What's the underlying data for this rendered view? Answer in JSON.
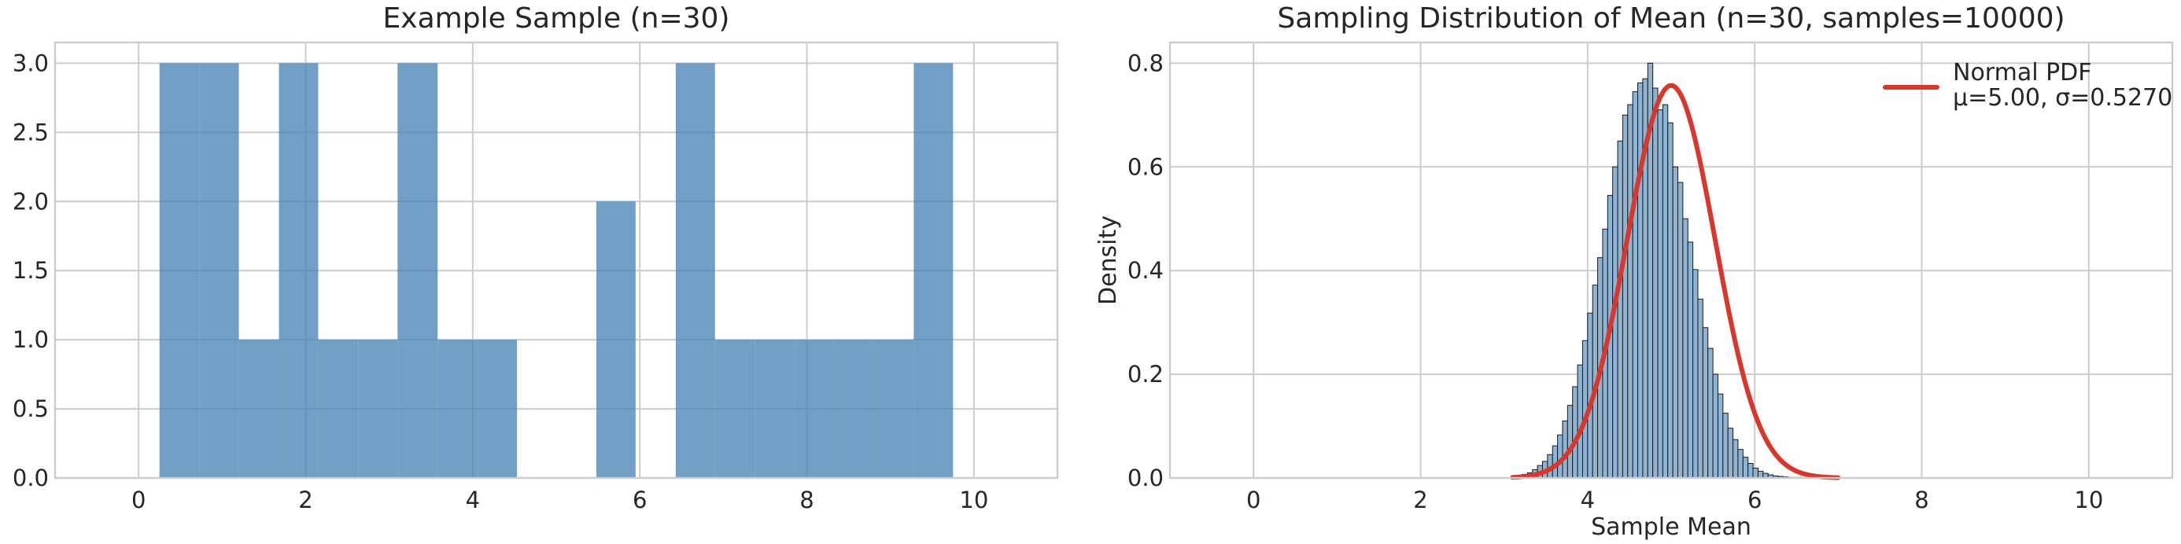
{
  "chart_data": [
    {
      "type": "bar",
      "title": "Example Sample (n=30)",
      "xlabel": "",
      "ylabel": "",
      "xlim": [
        -1,
        11
      ],
      "ylim": [
        0,
        3.15
      ],
      "xticks": [
        0,
        2,
        4,
        6,
        8,
        10
      ],
      "yticks": [
        0.0,
        0.5,
        1.0,
        1.5,
        2.0,
        2.5,
        3.0
      ],
      "xtick_labels": [
        "0",
        "2",
        "4",
        "6",
        "8",
        "10"
      ],
      "ytick_labels": [
        "0.0",
        "0.5",
        "1.0",
        "1.5",
        "2.0",
        "2.5",
        "3.0"
      ],
      "grid": true,
      "bar_color": "#4682b4",
      "bins": [
        {
          "x0": 0.25,
          "x1": 0.73,
          "count": 3
        },
        {
          "x0": 0.73,
          "x1": 1.2,
          "count": 3
        },
        {
          "x0": 1.2,
          "x1": 1.68,
          "count": 1
        },
        {
          "x0": 1.68,
          "x1": 2.15,
          "count": 3
        },
        {
          "x0": 2.15,
          "x1": 2.63,
          "count": 1
        },
        {
          "x0": 2.63,
          "x1": 3.1,
          "count": 1
        },
        {
          "x0": 3.1,
          "x1": 3.58,
          "count": 3
        },
        {
          "x0": 3.58,
          "x1": 4.05,
          "count": 1
        },
        {
          "x0": 4.05,
          "x1": 4.53,
          "count": 1
        },
        {
          "x0": 4.53,
          "x1": 5.0,
          "count": 0
        },
        {
          "x0": 5.0,
          "x1": 5.48,
          "count": 0
        },
        {
          "x0": 5.48,
          "x1": 5.95,
          "count": 2
        },
        {
          "x0": 5.95,
          "x1": 6.43,
          "count": 0
        },
        {
          "x0": 6.43,
          "x1": 6.9,
          "count": 3
        },
        {
          "x0": 6.9,
          "x1": 7.38,
          "count": 1
        },
        {
          "x0": 7.38,
          "x1": 7.85,
          "count": 1
        },
        {
          "x0": 7.85,
          "x1": 8.33,
          "count": 1
        },
        {
          "x0": 8.33,
          "x1": 8.8,
          "count": 1
        },
        {
          "x0": 8.8,
          "x1": 9.28,
          "count": 1
        },
        {
          "x0": 9.28,
          "x1": 9.75,
          "count": 3
        }
      ]
    },
    {
      "type": "bar",
      "title": "Sampling Distribution of Mean (n=30, samples=10000)",
      "xlabel": "Sample Mean",
      "ylabel": "Density",
      "xlim": [
        -1,
        11
      ],
      "ylim": [
        0,
        0.84
      ],
      "xticks": [
        0,
        2,
        4,
        6,
        8,
        10
      ],
      "yticks": [
        0.0,
        0.2,
        0.4,
        0.6,
        0.8
      ],
      "xtick_labels": [
        "0",
        "2",
        "4",
        "6",
        "8",
        "10"
      ],
      "ytick_labels": [
        "0.0",
        "0.2",
        "0.4",
        "0.6",
        "0.8"
      ],
      "grid": true,
      "legend_position": "top-right",
      "histogram": {
        "color": "#8fb4d3",
        "edge_color": "#1a1a1a",
        "range": [
          3.1,
          7.0
        ],
        "bin_width": 0.06,
        "densities": [
          0.002,
          0.004,
          0.007,
          0.01,
          0.016,
          0.024,
          0.032,
          0.045,
          0.062,
          0.083,
          0.11,
          0.14,
          0.176,
          0.218,
          0.265,
          0.318,
          0.372,
          0.425,
          0.48,
          0.545,
          0.6,
          0.65,
          0.7,
          0.72,
          0.745,
          0.762,
          0.77,
          0.8,
          0.752,
          0.71,
          0.72,
          0.685,
          0.6,
          0.57,
          0.5,
          0.455,
          0.402,
          0.345,
          0.29,
          0.25,
          0.2,
          0.162,
          0.125,
          0.096,
          0.074,
          0.055,
          0.04,
          0.028,
          0.019,
          0.013,
          0.009,
          0.006,
          0.004,
          0.003,
          0.002,
          0.001,
          0.001,
          0.001,
          0.0,
          0.0,
          0.0,
          0.0,
          0.0,
          0.0,
          0.0
        ]
      },
      "series": [
        {
          "name": "Normal PDF\nμ=5.00, σ=0.5270",
          "type": "line",
          "color": "#d9372b",
          "mu": 5.0,
          "sigma": 0.527,
          "x_range": [
            3.1,
            7.0
          ]
        }
      ]
    }
  ]
}
